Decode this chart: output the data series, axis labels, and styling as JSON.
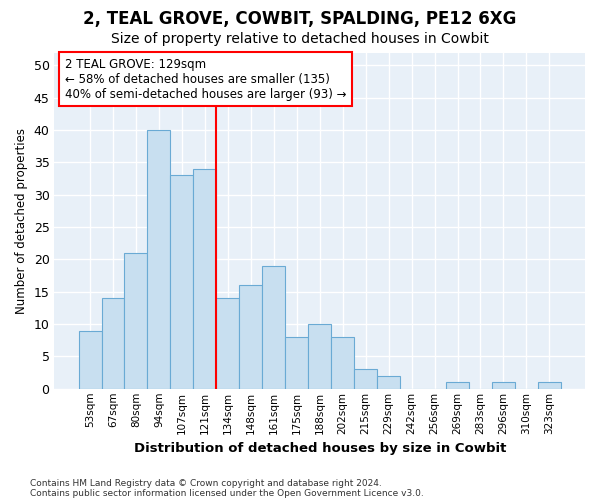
{
  "title": "2, TEAL GROVE, COWBIT, SPALDING, PE12 6XG",
  "subtitle": "Size of property relative to detached houses in Cowbit",
  "xlabel": "Distribution of detached houses by size in Cowbit",
  "ylabel": "Number of detached properties",
  "footer_line1": "Contains HM Land Registry data © Crown copyright and database right 2024.",
  "footer_line2": "Contains public sector information licensed under the Open Government Licence v3.0.",
  "bins": [
    "53sqm",
    "67sqm",
    "80sqm",
    "94sqm",
    "107sqm",
    "121sqm",
    "134sqm",
    "148sqm",
    "161sqm",
    "175sqm",
    "188sqm",
    "202sqm",
    "215sqm",
    "229sqm",
    "242sqm",
    "256sqm",
    "269sqm",
    "283sqm",
    "296sqm",
    "310sqm",
    "323sqm"
  ],
  "bar_values": [
    9,
    14,
    21,
    40,
    33,
    34,
    14,
    16,
    19,
    8,
    10,
    8,
    3,
    2,
    0,
    0,
    1,
    0,
    1,
    0,
    1
  ],
  "bar_color": "#c8dff0",
  "bar_edge_color": "#6aaad4",
  "vline_x": 6,
  "vline_color": "red",
  "annotation_text": "2 TEAL GROVE: 129sqm\n← 58% of detached houses are smaller (135)\n40% of semi-detached houses are larger (93) →",
  "annotation_box_color": "white",
  "annotation_box_edge_color": "red",
  "ylim": [
    0,
    52
  ],
  "yticks": [
    0,
    5,
    10,
    15,
    20,
    25,
    30,
    35,
    40,
    45,
    50
  ],
  "bg_color": "#ffffff",
  "plot_bg_color": "#e8f0f8",
  "grid_color": "white",
  "title_fontsize": 12,
  "subtitle_fontsize": 10
}
